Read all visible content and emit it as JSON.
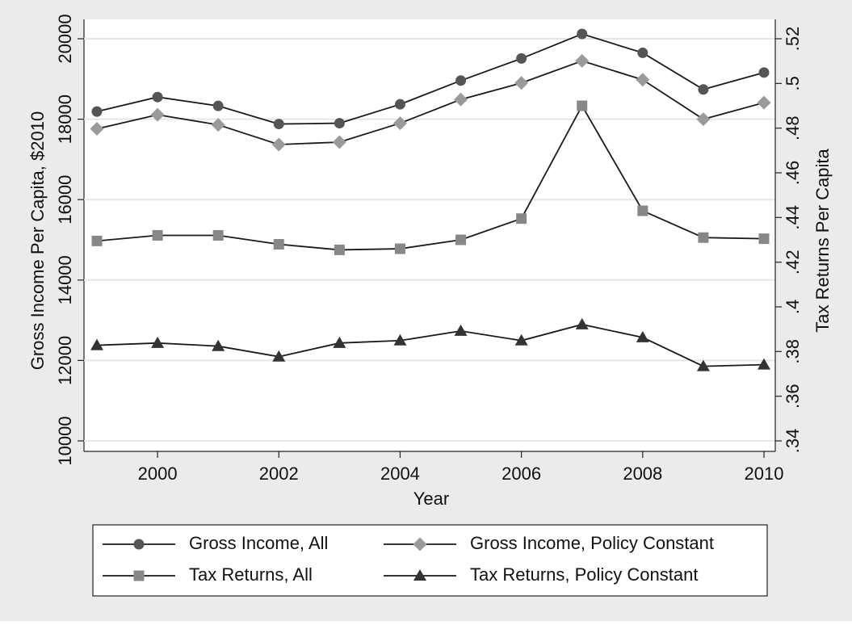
{
  "chart_data": {
    "type": "line",
    "x_label": "Year",
    "y_label": "Gross Income Per Capita, $2010",
    "y2_label": "Tax Returns Per Capita",
    "x": [
      1999,
      2000,
      2001,
      2002,
      2003,
      2004,
      2005,
      2006,
      2007,
      2008,
      2009,
      2010
    ],
    "xlim": [
      1999,
      2010
    ],
    "xticks": [
      2000,
      2002,
      2004,
      2006,
      2008,
      2010
    ],
    "ylim": [
      10000,
      20000
    ],
    "yticks": [
      10000,
      12000,
      14000,
      16000,
      18000,
      20000
    ],
    "y2lim": [
      0.34,
      0.52
    ],
    "y2ticks": [
      {
        "value": 0.34,
        "label": ".34"
      },
      {
        "value": 0.36,
        "label": ".36"
      },
      {
        "value": 0.38,
        "label": ".38"
      },
      {
        "value": 0.4,
        "label": ".4"
      },
      {
        "value": 0.42,
        "label": ".42"
      },
      {
        "value": 0.44,
        "label": ".44"
      },
      {
        "value": 0.46,
        "label": ".46"
      },
      {
        "value": 0.48,
        "label": ".48"
      },
      {
        "value": 0.5,
        "label": ".5"
      },
      {
        "value": 0.52,
        "label": ".52"
      }
    ],
    "grid": true,
    "legend": "bottom",
    "series": [
      {
        "name": "Gross Income, All",
        "color": "#555555",
        "marker": "circle",
        "values": [
          18190,
          18550,
          18330,
          17880,
          17900,
          18370,
          18960,
          19510,
          20120,
          19650,
          18740,
          19160
        ]
      },
      {
        "name": "Gross Income, Policy Constant",
        "color": "#9a9a9a",
        "marker": "diamond",
        "values": [
          17760,
          18110,
          17860,
          17370,
          17430,
          17900,
          18490,
          18900,
          19450,
          18980,
          18000,
          18410
        ]
      },
      {
        "name": "Tax Returns, All",
        "color": "#878787",
        "marker": "square",
        "axis": "y2",
        "values": [
          0.4295,
          0.432,
          0.432,
          0.428,
          0.4255,
          0.426,
          0.43,
          0.4395,
          0.49,
          0.443,
          0.431,
          0.4305
        ]
      },
      {
        "name": "Tax Returns, Policy Constant",
        "color": "#333333",
        "marker": "triangle",
        "axis": "y2",
        "values": [
          0.3828,
          0.3838,
          0.3824,
          0.3777,
          0.3838,
          0.3849,
          0.3892,
          0.3849,
          0.3921,
          0.3863,
          0.3734,
          0.3741
        ]
      }
    ]
  }
}
